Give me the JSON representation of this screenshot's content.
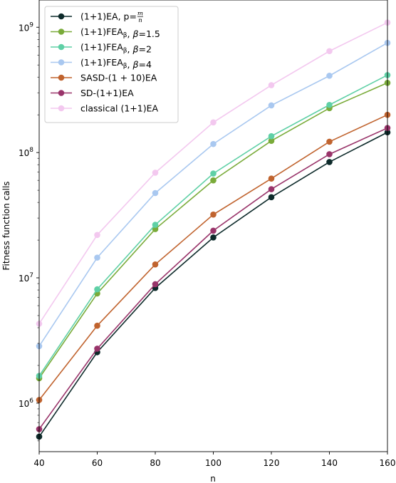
{
  "chart_data": {
    "type": "line",
    "title": "",
    "xlabel": "n",
    "ylabel": "Fitness function calls",
    "x": [
      40,
      60,
      80,
      100,
      120,
      140,
      160
    ],
    "xlim": [
      40,
      160
    ],
    "x_ticks": [
      "40",
      "60",
      "80",
      "100",
      "120",
      "140",
      "160"
    ],
    "ylim": [
      410000,
      1650000000
    ],
    "y_scale": "log",
    "y_ticks": [
      {
        "value": 1000000,
        "base": "10",
        "exp": "6"
      },
      {
        "value": 10000000,
        "base": "10",
        "exp": "7"
      },
      {
        "value": 100000000,
        "base": "10",
        "exp": "8"
      },
      {
        "value": 1000000000,
        "base": "10",
        "exp": "9"
      }
    ],
    "grid": false,
    "legend_position": "top-left",
    "series": [
      {
        "name": "(1+1)EA, p=m/n",
        "color": "#0d2a2a",
        "values": [
          540000,
          2550000,
          8300000,
          21000000,
          44000000,
          84000000,
          145000000
        ]
      },
      {
        "name": "(1+1)FEAβ, β=1.5",
        "color": "#7aab3a",
        "values": [
          1580000,
          7500000,
          24500000,
          60000000,
          124000000,
          226000000,
          360000000
        ]
      },
      {
        "name": "(1+1)FEAβ, β=2",
        "color": "#5fd0a6",
        "values": [
          1650000,
          8100000,
          26500000,
          68000000,
          135000000,
          240000000,
          415000000
        ]
      },
      {
        "name": "(1+1)FEAβ, β=4",
        "color": "#a9c8f0",
        "values": [
          2850000,
          14500000,
          47500000,
          117000000,
          238000000,
          410000000,
          750000000
        ]
      },
      {
        "name": "SASD-(1+10)EA",
        "color": "#c0632e",
        "values": [
          1060000,
          4150000,
          12800000,
          32000000,
          62000000,
          122000000,
          200000000
        ]
      },
      {
        "name": "SD-(1+1)EA",
        "color": "#99346a",
        "values": [
          620000,
          2720000,
          8900000,
          23800000,
          51000000,
          97000000,
          157000000
        ]
      },
      {
        "name": "classical (1+1)EA",
        "color": "#f3c8ef",
        "values": [
          4300000,
          22000000,
          69000000,
          174000000,
          345000000,
          645000000,
          1090000000
        ]
      }
    ],
    "legend": [
      {
        "series": 0,
        "parts": [
          {
            "t": "(1+1)EA, p="
          }
        ],
        "frac": {
          "num": "m",
          "den": "n"
        }
      },
      {
        "series": 1,
        "parts": [
          {
            "t": "(1+1)FEA"
          },
          {
            "t": "β",
            "sub": true
          },
          {
            "t": ", "
          },
          {
            "t": "β",
            "italic": true
          },
          {
            "t": "=1.5"
          }
        ]
      },
      {
        "series": 2,
        "parts": [
          {
            "t": "(1+1)FEA"
          },
          {
            "t": "β",
            "sub": true
          },
          {
            "t": ", "
          },
          {
            "t": "β",
            "italic": true
          },
          {
            "t": "=2"
          }
        ]
      },
      {
        "series": 3,
        "parts": [
          {
            "t": "(1+1)FEA"
          },
          {
            "t": "β",
            "sub": true
          },
          {
            "t": ", "
          },
          {
            "t": "β",
            "italic": true
          },
          {
            "t": "=4"
          }
        ]
      },
      {
        "series": 4,
        "parts": [
          {
            "t": "SASD-(1 + 10)EA"
          }
        ]
      },
      {
        "series": 5,
        "parts": [
          {
            "t": "SD-(1+1)EA"
          }
        ]
      },
      {
        "series": 6,
        "parts": [
          {
            "t": "classical (1+1)EA"
          }
        ]
      }
    ]
  }
}
